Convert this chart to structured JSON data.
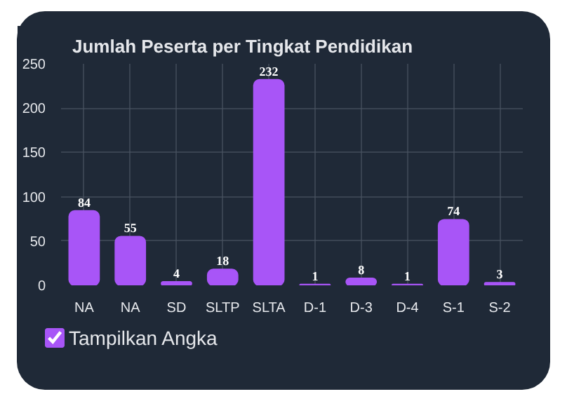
{
  "chart_data": {
    "type": "bar",
    "title": "Jumlah Peserta per Tingkat Pendidikan",
    "categories": [
      "NA",
      "NA",
      "SD",
      "SLTP",
      "SLTA",
      "D-1",
      "D-3",
      "D-4",
      "S-1",
      "S-2"
    ],
    "values": [
      84,
      55,
      4,
      18,
      232,
      1,
      8,
      1,
      74,
      3
    ],
    "color": "#a855f7",
    "ylim": [
      0,
      250
    ],
    "yticks": [
      0,
      50,
      100,
      150,
      200,
      250
    ],
    "grid": true,
    "data_labels": true,
    "annotations": [
      "Tampilkan Angka"
    ]
  }
}
